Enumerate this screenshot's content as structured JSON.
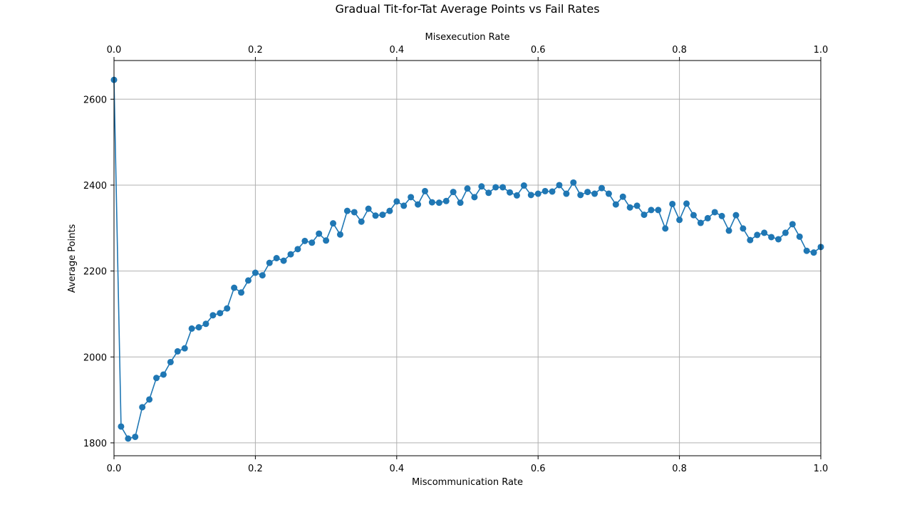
{
  "chart_data": {
    "type": "line",
    "title": "Gradual Tit-for-Tat Average Points vs Fail Rates",
    "xlabel": "Miscommunication Rate",
    "x2label": "Misexecution Rate",
    "ylabel": "Average Points",
    "xlim": [
      0.0,
      1.0
    ],
    "x2lim": [
      0.0,
      1.0
    ],
    "ylim": [
      1770,
      2690
    ],
    "grid": true,
    "x_ticks": [
      "0.0",
      "0.2",
      "0.4",
      "0.6",
      "0.8",
      "1.0"
    ],
    "x2_ticks": [
      "0.0",
      "0.2",
      "0.4",
      "0.6",
      "0.8",
      "1.0"
    ],
    "y_ticks": [
      "1800",
      "2000",
      "2200",
      "2400",
      "2600"
    ],
    "color": "#1f77b4",
    "marker": "circle",
    "series": [
      {
        "x": [
          0.0,
          0.01,
          0.02,
          0.03,
          0.04,
          0.05,
          0.06,
          0.07,
          0.08,
          0.09,
          0.1,
          0.11,
          0.12,
          0.13,
          0.14,
          0.15,
          0.16,
          0.17,
          0.18,
          0.19,
          0.2,
          0.21,
          0.22,
          0.23,
          0.24,
          0.25,
          0.26,
          0.27,
          0.28,
          0.29,
          0.3,
          0.31,
          0.32,
          0.33,
          0.34,
          0.35,
          0.36,
          0.37,
          0.38,
          0.39,
          0.4,
          0.41,
          0.42,
          0.43,
          0.44,
          0.45,
          0.46,
          0.47,
          0.48,
          0.49,
          0.5,
          0.51,
          0.52,
          0.53,
          0.54,
          0.55,
          0.56,
          0.57,
          0.58,
          0.59,
          0.6,
          0.61,
          0.62,
          0.63,
          0.64,
          0.65,
          0.66,
          0.67,
          0.68,
          0.69,
          0.7,
          0.71,
          0.72,
          0.73,
          0.74,
          0.75,
          0.76,
          0.77,
          0.78,
          0.79,
          0.8,
          0.81,
          0.82,
          0.83,
          0.84,
          0.85,
          0.86,
          0.87,
          0.88,
          0.89,
          0.9,
          0.91,
          0.92,
          0.93,
          0.94,
          0.95,
          0.96,
          0.97,
          0.98,
          0.99,
          1.0
        ],
        "y": [
          2645,
          1838,
          1810,
          1814,
          1883,
          1901,
          1951,
          1959,
          1988,
          2013,
          2020,
          2066,
          2069,
          2077,
          2097,
          2102,
          2113,
          2161,
          2150,
          2178,
          2196,
          2190,
          2219,
          2230,
          2224,
          2239,
          2251,
          2270,
          2266,
          2287,
          2271,
          2311,
          2285,
          2340,
          2337,
          2315,
          2345,
          2329,
          2331,
          2340,
          2362,
          2352,
          2372,
          2355,
          2386,
          2360,
          2359,
          2363,
          2384,
          2359,
          2392,
          2372,
          2397,
          2382,
          2395,
          2395,
          2383,
          2376,
          2399,
          2377,
          2380,
          2386,
          2385,
          2400,
          2380,
          2406,
          2377,
          2384,
          2380,
          2393,
          2380,
          2355,
          2373,
          2348,
          2352,
          2331,
          2342,
          2342,
          2299,
          2356,
          2319,
          2357,
          2330,
          2312,
          2323,
          2337,
          2328,
          2294,
          2330,
          2299,
          2272,
          2284,
          2289,
          2279,
          2274,
          2289,
          2309,
          2280,
          2247,
          2243,
          2256
        ]
      }
    ]
  }
}
